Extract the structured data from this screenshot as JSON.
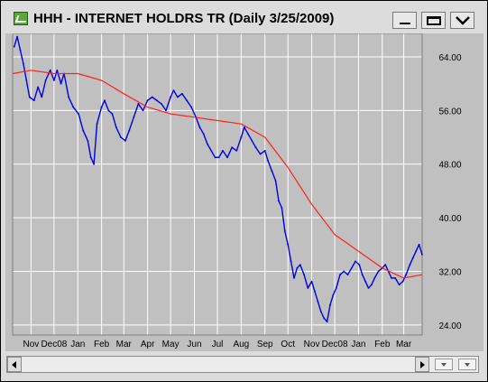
{
  "window": {
    "title": "HHH - INTERNET HOLDRS TR (Daily 3/25/2009)"
  },
  "colors": {
    "price_line": "#0000e0",
    "moving_average": "#ff2020",
    "plot_background": "#c0c0c0",
    "gridline": "#ffffff"
  },
  "icons": {
    "app": "chart-app-icon",
    "minimize": "minimize-icon",
    "maximize": "maximize-icon",
    "menu": "chevron-down-icon"
  },
  "chart_data": {
    "type": "line",
    "title": "HHH - INTERNET HOLDRS TR (Daily 3/25/2009)",
    "xlabel": "",
    "ylabel": "",
    "ylim": [
      22.5,
      67.5
    ],
    "y_ticks": [
      24.0,
      32.0,
      40.0,
      48.0,
      56.0,
      64.0
    ],
    "y_tick_labels": [
      "24.00",
      "32.00",
      "40.00",
      "48.00",
      "56.00",
      "64.00"
    ],
    "y_axis_position": "right",
    "grid": true,
    "x_tick_labels": [
      "Nov",
      "Dec08",
      "Jan",
      "Feb",
      "Mar",
      "Apr",
      "May",
      "Jun",
      "Jul",
      "Aug",
      "Sep",
      "Oct",
      "Nov",
      "Dec08",
      "Jan",
      "Feb",
      "Mar"
    ],
    "x_tick_dates": [
      "2007-11-01",
      "2007-12-01",
      "2008-01-01",
      "2008-02-01",
      "2008-03-01",
      "2008-04-01",
      "2008-05-01",
      "2008-06-01",
      "2008-07-01",
      "2008-08-01",
      "2008-09-01",
      "2008-10-01",
      "2008-11-01",
      "2008-12-01",
      "2009-01-01",
      "2009-02-01",
      "2009-03-01"
    ],
    "xlim": [
      "2007-10-08",
      "2009-03-25"
    ],
    "series": [
      {
        "style": "line",
        "points": [
          [
            "2007-10-10",
            65.5
          ],
          [
            "2007-10-14",
            67.0
          ],
          [
            "2007-10-18",
            65.0
          ],
          [
            "2007-10-22",
            63.0
          ],
          [
            "2007-10-26",
            60.5
          ],
          [
            "2007-10-30",
            58.0
          ],
          [
            "2007-11-05",
            57.5
          ],
          [
            "2007-11-10",
            59.5
          ],
          [
            "2007-11-15",
            58.0
          ],
          [
            "2007-11-20",
            60.5
          ],
          [
            "2007-11-26",
            62.0
          ],
          [
            "2007-12-01",
            60.5
          ],
          [
            "2007-12-05",
            62.0
          ],
          [
            "2007-12-10",
            60.0
          ],
          [
            "2007-12-14",
            61.5
          ],
          [
            "2007-12-20",
            58.0
          ],
          [
            "2007-12-26",
            56.5
          ],
          [
            "2008-01-02",
            55.5
          ],
          [
            "2008-01-08",
            53.0
          ],
          [
            "2008-01-14",
            51.5
          ],
          [
            "2008-01-18",
            49.0
          ],
          [
            "2008-01-22",
            48.0
          ],
          [
            "2008-01-26",
            54.0
          ],
          [
            "2008-02-01",
            56.5
          ],
          [
            "2008-02-05",
            57.5
          ],
          [
            "2008-02-10",
            56.0
          ],
          [
            "2008-02-15",
            55.5
          ],
          [
            "2008-02-20",
            53.5
          ],
          [
            "2008-02-26",
            52.0
          ],
          [
            "2008-03-03",
            51.5
          ],
          [
            "2008-03-08",
            53.0
          ],
          [
            "2008-03-14",
            55.0
          ],
          [
            "2008-03-20",
            57.0
          ],
          [
            "2008-03-26",
            56.0
          ],
          [
            "2008-04-01",
            57.5
          ],
          [
            "2008-04-07",
            58.0
          ],
          [
            "2008-04-13",
            57.5
          ],
          [
            "2008-04-19",
            57.0
          ],
          [
            "2008-04-25",
            56.0
          ],
          [
            "2008-05-01",
            58.0
          ],
          [
            "2008-05-05",
            59.0
          ],
          [
            "2008-05-10",
            58.0
          ],
          [
            "2008-05-16",
            58.5
          ],
          [
            "2008-05-22",
            57.5
          ],
          [
            "2008-05-28",
            56.5
          ],
          [
            "2008-06-03",
            55.0
          ],
          [
            "2008-06-08",
            53.5
          ],
          [
            "2008-06-13",
            52.5
          ],
          [
            "2008-06-18",
            51.0
          ],
          [
            "2008-06-23",
            50.0
          ],
          [
            "2008-06-28",
            49.0
          ],
          [
            "2008-07-03",
            49.0
          ],
          [
            "2008-07-08",
            50.0
          ],
          [
            "2008-07-14",
            49.0
          ],
          [
            "2008-07-20",
            50.5
          ],
          [
            "2008-07-26",
            50.0
          ],
          [
            "2008-08-01",
            52.0
          ],
          [
            "2008-08-05",
            53.5
          ],
          [
            "2008-08-10",
            52.5
          ],
          [
            "2008-08-15",
            51.5
          ],
          [
            "2008-08-20",
            50.5
          ],
          [
            "2008-08-26",
            49.5
          ],
          [
            "2008-09-01",
            50.0
          ],
          [
            "2008-09-05",
            48.5
          ],
          [
            "2008-09-10",
            47.0
          ],
          [
            "2008-09-15",
            45.5
          ],
          [
            "2008-09-19",
            42.5
          ],
          [
            "2008-09-23",
            41.5
          ],
          [
            "2008-09-27",
            38.0
          ],
          [
            "2008-10-01",
            36.0
          ],
          [
            "2008-10-05",
            33.5
          ],
          [
            "2008-10-09",
            31.0
          ],
          [
            "2008-10-13",
            32.5
          ],
          [
            "2008-10-17",
            33.0
          ],
          [
            "2008-10-22",
            31.5
          ],
          [
            "2008-10-27",
            29.5
          ],
          [
            "2008-11-01",
            30.5
          ],
          [
            "2008-11-05",
            29.0
          ],
          [
            "2008-11-09",
            27.5
          ],
          [
            "2008-11-13",
            26.0
          ],
          [
            "2008-11-17",
            25.0
          ],
          [
            "2008-11-21",
            24.5
          ],
          [
            "2008-11-25",
            27.0
          ],
          [
            "2008-11-29",
            28.5
          ],
          [
            "2008-12-03",
            29.5
          ],
          [
            "2008-12-08",
            31.5
          ],
          [
            "2008-12-13",
            32.0
          ],
          [
            "2008-12-18",
            31.5
          ],
          [
            "2008-12-23",
            32.5
          ],
          [
            "2008-12-28",
            33.5
          ],
          [
            "2009-01-02",
            33.0
          ],
          [
            "2009-01-06",
            31.5
          ],
          [
            "2009-01-10",
            30.5
          ],
          [
            "2009-01-14",
            29.5
          ],
          [
            "2009-01-18",
            30.0
          ],
          [
            "2009-01-22",
            31.0
          ],
          [
            "2009-01-27",
            32.0
          ],
          [
            "2009-02-01",
            32.5
          ],
          [
            "2009-02-05",
            33.0
          ],
          [
            "2009-02-09",
            32.0
          ],
          [
            "2009-02-13",
            31.0
          ],
          [
            "2009-02-18",
            31.0
          ],
          [
            "2009-02-23",
            30.0
          ],
          [
            "2009-02-28",
            30.5
          ],
          [
            "2009-03-04",
            31.5
          ],
          [
            "2009-03-09",
            33.0
          ],
          [
            "2009-03-13",
            34.0
          ],
          [
            "2009-03-17",
            35.0
          ],
          [
            "2009-03-21",
            36.0
          ],
          [
            "2009-03-25",
            34.5
          ]
        ]
      },
      {
        "style": "moving_average",
        "points": [
          [
            "2007-10-08",
            61.5
          ],
          [
            "2007-11-01",
            62.0
          ],
          [
            "2007-12-01",
            61.5
          ],
          [
            "2008-01-01",
            61.5
          ],
          [
            "2008-02-01",
            60.5
          ],
          [
            "2008-03-01",
            58.5
          ],
          [
            "2008-04-01",
            56.5
          ],
          [
            "2008-05-01",
            55.5
          ],
          [
            "2008-06-01",
            55.0
          ],
          [
            "2008-07-01",
            54.5
          ],
          [
            "2008-08-01",
            54.0
          ],
          [
            "2008-09-01",
            52.0
          ],
          [
            "2008-10-01",
            47.5
          ],
          [
            "2008-11-01",
            42.0
          ],
          [
            "2008-12-01",
            37.5
          ],
          [
            "2009-01-01",
            35.0
          ],
          [
            "2009-02-01",
            32.5
          ],
          [
            "2009-03-01",
            31.0
          ],
          [
            "2009-03-25",
            31.5
          ]
        ]
      }
    ]
  }
}
